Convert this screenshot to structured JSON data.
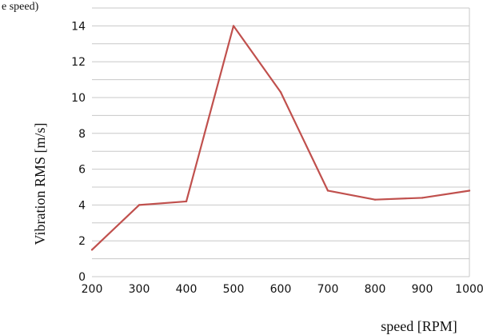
{
  "page": {
    "top_fragment": "e speed)"
  },
  "chart_data": {
    "type": "line",
    "x": [
      200,
      300,
      400,
      500,
      600,
      700,
      800,
      900,
      1000
    ],
    "series": [
      {
        "values": [
          1.5,
          4.0,
          4.2,
          14.0,
          10.3,
          4.8,
          4.3,
          4.4,
          4.8
        ]
      }
    ],
    "xticks": [
      "200",
      "300",
      "400",
      "500",
      "600",
      "700",
      "800",
      "900",
      "1000"
    ],
    "yticks": [
      "0",
      "2",
      "4",
      "6",
      "8",
      "10",
      "12",
      "14"
    ],
    "xlabel": "speed [RPM]",
    "ylabel": "Vibration RMS [m/s]",
    "xlim": [
      200,
      1000
    ],
    "ylim": [
      0,
      15
    ],
    "grid": true,
    "colors": {
      "line": "#c0504d",
      "grid": "#c8c8c8"
    }
  }
}
